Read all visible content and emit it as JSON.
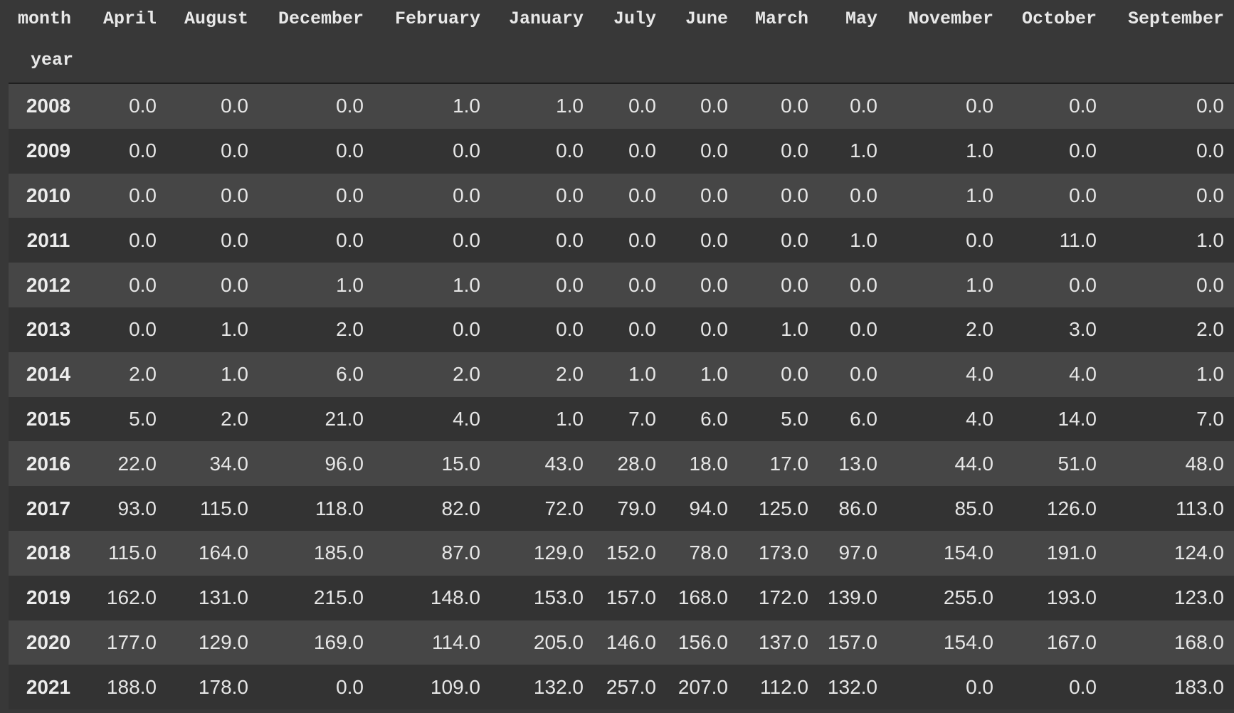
{
  "table": {
    "columns_label": "month",
    "index_label": "year",
    "columns": [
      "April",
      "August",
      "December",
      "February",
      "January",
      "July",
      "June",
      "March",
      "May",
      "November",
      "October",
      "September"
    ],
    "rows": [
      {
        "year": "2008",
        "values": [
          "0.0",
          "0.0",
          "0.0",
          "1.0",
          "1.0",
          "0.0",
          "0.0",
          "0.0",
          "0.0",
          "0.0",
          "0.0",
          "0.0"
        ]
      },
      {
        "year": "2009",
        "values": [
          "0.0",
          "0.0",
          "0.0",
          "0.0",
          "0.0",
          "0.0",
          "0.0",
          "0.0",
          "1.0",
          "1.0",
          "0.0",
          "0.0"
        ]
      },
      {
        "year": "2010",
        "values": [
          "0.0",
          "0.0",
          "0.0",
          "0.0",
          "0.0",
          "0.0",
          "0.0",
          "0.0",
          "0.0",
          "1.0",
          "0.0",
          "0.0"
        ]
      },
      {
        "year": "2011",
        "values": [
          "0.0",
          "0.0",
          "0.0",
          "0.0",
          "0.0",
          "0.0",
          "0.0",
          "0.0",
          "1.0",
          "0.0",
          "11.0",
          "1.0"
        ]
      },
      {
        "year": "2012",
        "values": [
          "0.0",
          "0.0",
          "1.0",
          "1.0",
          "0.0",
          "0.0",
          "0.0",
          "0.0",
          "0.0",
          "1.0",
          "0.0",
          "0.0"
        ]
      },
      {
        "year": "2013",
        "values": [
          "0.0",
          "1.0",
          "2.0",
          "0.0",
          "0.0",
          "0.0",
          "0.0",
          "1.0",
          "0.0",
          "2.0",
          "3.0",
          "2.0"
        ]
      },
      {
        "year": "2014",
        "values": [
          "2.0",
          "1.0",
          "6.0",
          "2.0",
          "2.0",
          "1.0",
          "1.0",
          "0.0",
          "0.0",
          "4.0",
          "4.0",
          "1.0"
        ]
      },
      {
        "year": "2015",
        "values": [
          "5.0",
          "2.0",
          "21.0",
          "4.0",
          "1.0",
          "7.0",
          "6.0",
          "5.0",
          "6.0",
          "4.0",
          "14.0",
          "7.0"
        ]
      },
      {
        "year": "2016",
        "values": [
          "22.0",
          "34.0",
          "96.0",
          "15.0",
          "43.0",
          "28.0",
          "18.0",
          "17.0",
          "13.0",
          "44.0",
          "51.0",
          "48.0"
        ]
      },
      {
        "year": "2017",
        "values": [
          "93.0",
          "115.0",
          "118.0",
          "82.0",
          "72.0",
          "79.0",
          "94.0",
          "125.0",
          "86.0",
          "85.0",
          "126.0",
          "113.0"
        ]
      },
      {
        "year": "2018",
        "values": [
          "115.0",
          "164.0",
          "185.0",
          "87.0",
          "129.0",
          "152.0",
          "78.0",
          "173.0",
          "97.0",
          "154.0",
          "191.0",
          "124.0"
        ]
      },
      {
        "year": "2019",
        "values": [
          "162.0",
          "131.0",
          "215.0",
          "148.0",
          "153.0",
          "157.0",
          "168.0",
          "172.0",
          "139.0",
          "255.0",
          "193.0",
          "123.0"
        ]
      },
      {
        "year": "2020",
        "values": [
          "177.0",
          "129.0",
          "169.0",
          "114.0",
          "205.0",
          "146.0",
          "156.0",
          "137.0",
          "157.0",
          "154.0",
          "167.0",
          "168.0"
        ]
      },
      {
        "year": "2021",
        "values": [
          "188.0",
          "178.0",
          "0.0",
          "109.0",
          "132.0",
          "257.0",
          "207.0",
          "112.0",
          "132.0",
          "0.0",
          "0.0",
          "183.0"
        ]
      }
    ]
  }
}
